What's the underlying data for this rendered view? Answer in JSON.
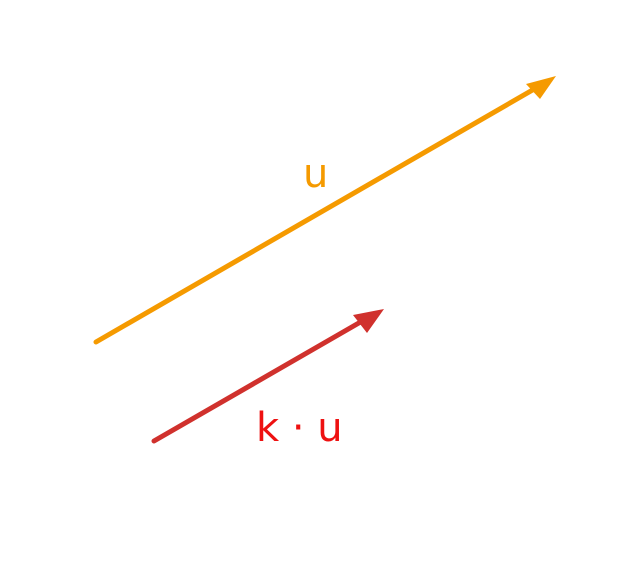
{
  "vectors": {
    "u": {
      "label": "u",
      "color": "#f59a00"
    },
    "scaled": {
      "label": "k · u",
      "color": "#d0312d",
      "label_color": "#ee1111"
    }
  }
}
